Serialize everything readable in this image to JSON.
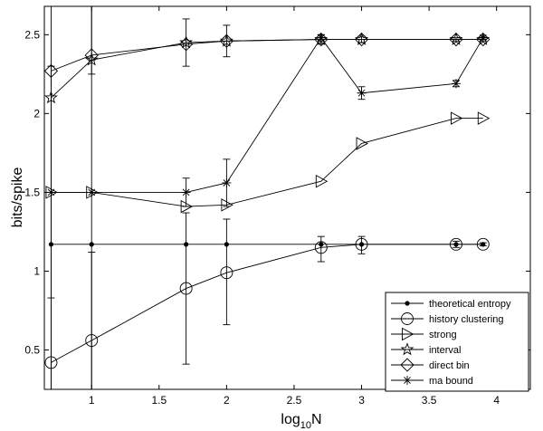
{
  "chart_data": {
    "type": "line",
    "title": "",
    "xlabel": "log",
    "xlabel_sub": "10",
    "xlabel_suffix": "N",
    "ylabel": "bits/spike",
    "xlim": [
      0.65,
      4.25
    ],
    "ylim": [
      0.25,
      2.68
    ],
    "grid": false,
    "legend_position": "bottom-right",
    "x_ticks": [
      1,
      1.5,
      2,
      2.5,
      3,
      3.5,
      4
    ],
    "x_tick_labels": [
      "1",
      "1.5",
      "2",
      "2.5",
      "3",
      "3.5",
      "4"
    ],
    "y_ticks": [
      0.5,
      1,
      1.5,
      2,
      2.5
    ],
    "y_tick_labels": [
      "0.5",
      "1",
      "1.5",
      "2",
      "2.5"
    ],
    "series": [
      {
        "name": "theoretical entropy",
        "marker": "dot",
        "x": [
          0.7,
          1,
          1.7,
          2,
          2.7,
          3,
          3.7,
          3.9
        ],
        "y": [
          1.17,
          1.17,
          1.17,
          1.17,
          1.17,
          1.17,
          1.17,
          1.17
        ],
        "err_low": [],
        "err_high": []
      },
      {
        "name": "history clustering",
        "marker": "circle",
        "x": [
          0.7,
          1,
          1.7,
          2,
          2.7,
          3,
          3.7,
          3.9
        ],
        "y": [
          0.42,
          0.56,
          0.89,
          0.99,
          1.15,
          1.17,
          1.17,
          1.17
        ],
        "err_low": [
          0.0,
          0.0,
          0.41,
          0.66,
          1.06,
          1.11,
          1.15,
          1.16
        ],
        "err_high": [
          0.83,
          1.12,
          1.37,
          1.33,
          1.22,
          1.22,
          1.19,
          1.18
        ]
      },
      {
        "name": "strong",
        "marker": "triangle-right",
        "x": [
          0.7,
          1,
          1.7,
          2,
          2.7,
          3,
          3.7,
          3.9
        ],
        "y": [
          1.5,
          1.5,
          1.41,
          1.42,
          1.57,
          1.81,
          1.97,
          1.97
        ],
        "err_low": [],
        "err_high": []
      },
      {
        "name": "interval",
        "marker": "star",
        "x": [
          0.7,
          1,
          1.7,
          2,
          2.7,
          3,
          3.7,
          3.9
        ],
        "y": [
          2.1,
          2.34,
          2.45,
          2.46,
          2.47,
          2.47,
          2.47,
          2.47
        ],
        "err_low": [],
        "err_high": []
      },
      {
        "name": "direct bin",
        "marker": "diamond",
        "x": [
          0.7,
          1,
          1.7,
          2,
          2.7,
          3,
          3.7,
          3.9
        ],
        "y": [
          2.27,
          2.37,
          2.44,
          2.46,
          2.47,
          2.47,
          2.47,
          2.47
        ],
        "err_low": [
          0.0,
          2.25,
          2.3,
          2.36,
          2.44,
          2.45,
          2.46,
          2.46
        ],
        "err_high": [
          2.68,
          2.68,
          2.6,
          2.56,
          2.5,
          2.49,
          2.48,
          2.48
        ]
      },
      {
        "name": "ma bound",
        "marker": "asterisk",
        "x": [
          0.7,
          1,
          1.7,
          2,
          2.7,
          3,
          3.7,
          3.9
        ],
        "y": [
          1.5,
          1.5,
          1.5,
          1.56,
          2.48,
          2.13,
          2.19,
          2.48
        ],
        "err_low": [
          0.0,
          0.0,
          1.41,
          1.41,
          2.46,
          2.09,
          2.17,
          2.47
        ],
        "err_high": [
          2.3,
          2.68,
          1.59,
          1.71,
          2.5,
          2.17,
          2.21,
          2.49
        ]
      }
    ]
  }
}
